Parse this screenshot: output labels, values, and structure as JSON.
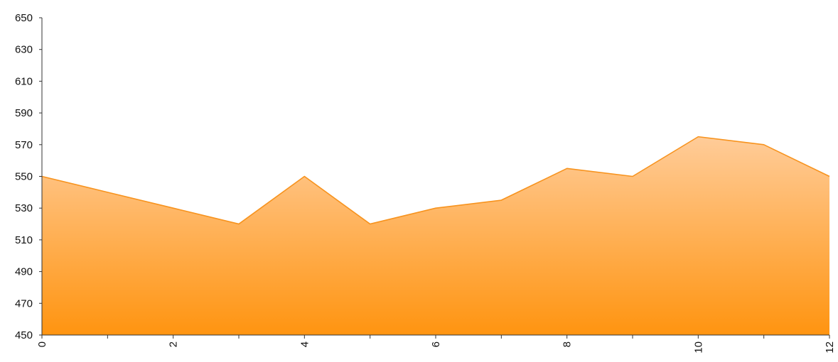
{
  "chart_data": {
    "type": "area",
    "x": [
      0,
      1,
      2,
      3,
      4,
      5,
      6,
      7,
      8,
      9,
      10,
      11,
      12
    ],
    "series": [
      {
        "values": [
          550,
          540,
          530,
          520,
          550,
          520,
          530,
          535,
          555,
          550,
          575,
          570,
          550
        ]
      }
    ],
    "xlim": [
      0,
      12
    ],
    "ylim": [
      450,
      650
    ],
    "x_tick_labels": [
      "0",
      "2",
      "4",
      "6",
      "8",
      "10",
      "12"
    ],
    "y_tick_labels": [
      "450",
      "470",
      "490",
      "510",
      "530",
      "550",
      "570",
      "590",
      "610",
      "630",
      "650"
    ],
    "grid": false,
    "legend": "none",
    "colors": {
      "line": "#F7931E",
      "fill_top": "#FFCC99",
      "fill_bottom": "#FF9410",
      "axis": "#333333"
    }
  }
}
